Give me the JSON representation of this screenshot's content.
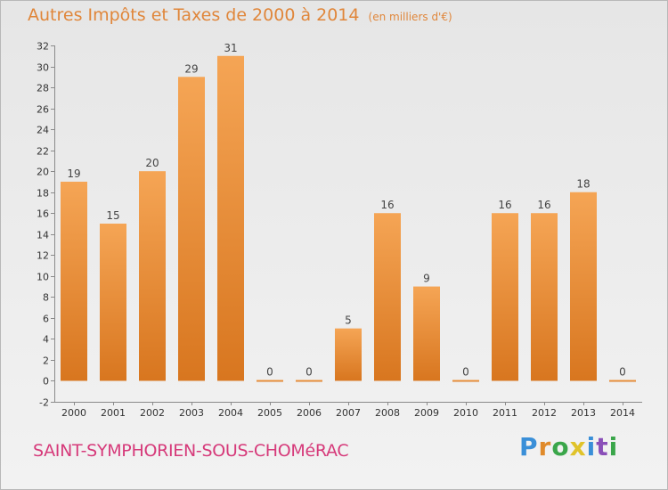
{
  "header": {
    "title": "Autres Impôts et Taxes de 2000 à 2014",
    "unit": "(en milliers d'€)"
  },
  "footer": {
    "town": "SAINT-SYMPHORIEN-SOUS-CHOMéRAC",
    "logo_letters": [
      "P",
      "r",
      "o",
      "x",
      "i",
      "t",
      "i"
    ]
  },
  "colors": {
    "bar_top": "#f5a555",
    "bar_bottom": "#d8761f",
    "title": "#e0863a",
    "town": "#d63a7a",
    "logo": [
      "#3a8fd8",
      "#e08a2a",
      "#3aa64a",
      "#e0c32a",
      "#3a8fd8",
      "#8a4fb8",
      "#3aa64a"
    ]
  },
  "chart_data": {
    "type": "bar",
    "title": "Autres Impôts et Taxes de 2000 à 2014",
    "categories": [
      "2000",
      "2001",
      "2002",
      "2003",
      "2004",
      "2005",
      "2006",
      "2007",
      "2008",
      "2009",
      "2010",
      "2011",
      "2012",
      "2013",
      "2014"
    ],
    "values": [
      19,
      15,
      20,
      29,
      31,
      0,
      0,
      5,
      16,
      9,
      0,
      16,
      16,
      18,
      0
    ],
    "ylim": [
      -2,
      32
    ],
    "yticks": [
      "-2",
      "0",
      "2",
      "4",
      "6",
      "8",
      "10",
      "12",
      "14",
      "16",
      "18",
      "20",
      "22",
      "24",
      "26",
      "28",
      "30",
      "32"
    ],
    "grid": false,
    "legend": "none"
  }
}
